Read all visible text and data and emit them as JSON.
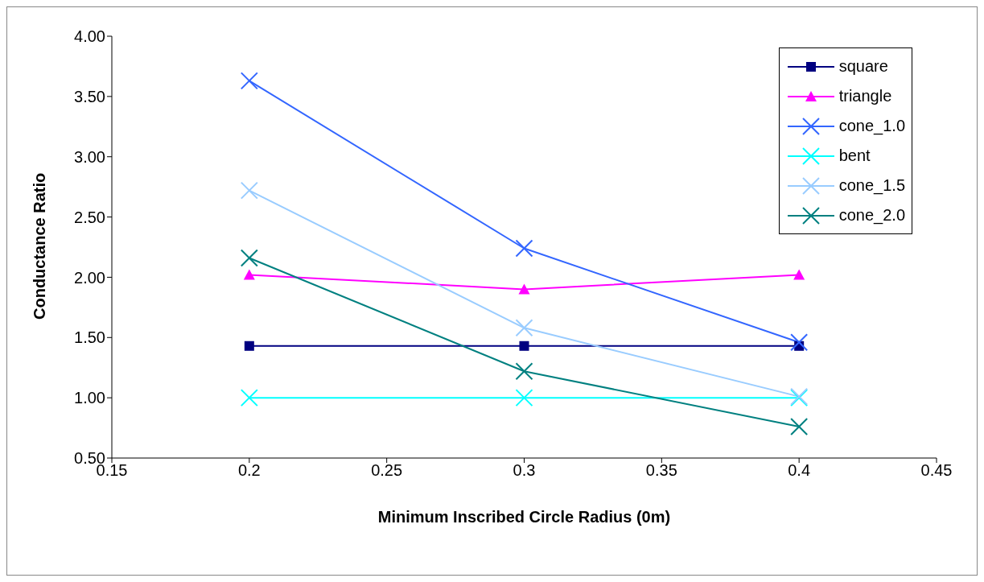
{
  "chart_data": {
    "type": "line",
    "xlabel": "Minimum Inscribed Circle Radius (0m)",
    "ylabel": "Conductance Ratio",
    "x": [
      0.2,
      0.3,
      0.4
    ],
    "series": [
      {
        "name": "square",
        "color": "#000080",
        "marker": "square",
        "values": [
          1.43,
          1.43,
          1.43
        ]
      },
      {
        "name": "triangle",
        "color": "#ff00ff",
        "marker": "triangle",
        "values": [
          2.02,
          1.9,
          2.02
        ]
      },
      {
        "name": "cone_1.0",
        "color": "#3366ff",
        "marker": "cross",
        "values": [
          3.63,
          2.24,
          1.46
        ]
      },
      {
        "name": "bent",
        "color": "#00ffff",
        "marker": "cross",
        "values": [
          1.0,
          1.0,
          1.0
        ]
      },
      {
        "name": "cone_1.5",
        "color": "#99ccff",
        "marker": "cross",
        "values": [
          2.72,
          1.58,
          1.01
        ]
      },
      {
        "name": "cone_2.0",
        "color": "#008080",
        "marker": "cross",
        "values": [
          2.16,
          1.22,
          0.76
        ]
      }
    ],
    "xlim": [
      0.15,
      0.45
    ],
    "xticks": [
      0.15,
      0.2,
      0.25,
      0.3,
      0.35,
      0.4,
      0.45
    ],
    "ylim": [
      0.5,
      4.0
    ],
    "yticks": [
      {
        "value": 0.5,
        "label": "0.50"
      },
      {
        "value": 1.0,
        "label": "1.00"
      },
      {
        "value": 1.5,
        "label": "1.50"
      },
      {
        "value": 2.0,
        "label": "2.00"
      },
      {
        "value": 2.5,
        "label": "2.50"
      },
      {
        "value": 3.0,
        "label": "3.00"
      },
      {
        "value": 3.5,
        "label": "3.50"
      },
      {
        "value": 4.0,
        "label": "4.00"
      }
    ],
    "grid": false,
    "legend": "top right"
  }
}
